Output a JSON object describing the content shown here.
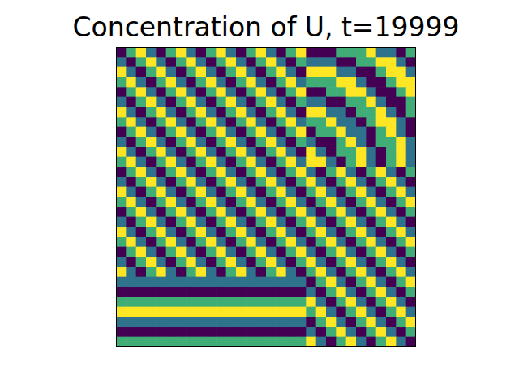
{
  "chart_data": {
    "type": "heatmap",
    "title": "Concentration of U, t=19999",
    "xlim": [
      0,
      30
    ],
    "ylim": [
      0,
      30
    ],
    "tick_labels": false,
    "cells": [
      [
        0.1,
        0.6,
        0.9,
        0.4,
        0.1,
        0.6,
        0.9,
        0.4,
        0.1,
        0.6,
        0.9,
        0.4,
        0.1,
        0.6,
        0.9,
        0.4,
        0.1,
        0.6,
        0.9,
        0.1,
        0.1,
        0.1,
        0.6,
        0.6,
        0.6,
        0.9,
        0.4,
        0.4,
        0.1,
        0.6
      ],
      [
        0.4,
        0.1,
        0.6,
        0.9,
        0.4,
        0.1,
        0.6,
        0.9,
        0.4,
        0.1,
        0.6,
        0.9,
        0.4,
        0.1,
        0.6,
        0.9,
        0.4,
        0.1,
        0.6,
        0.4,
        0.4,
        0.4,
        0.1,
        0.1,
        0.6,
        0.6,
        0.9,
        0.9,
        0.4,
        0.1
      ],
      [
        0.9,
        0.4,
        0.1,
        0.6,
        0.9,
        0.4,
        0.1,
        0.6,
        0.9,
        0.4,
        0.1,
        0.6,
        0.9,
        0.4,
        0.1,
        0.6,
        0.9,
        0.4,
        0.1,
        0.9,
        0.9,
        0.9,
        0.4,
        0.4,
        0.1,
        0.1,
        0.6,
        0.9,
        0.9,
        0.4
      ],
      [
        0.6,
        0.9,
        0.4,
        0.1,
        0.6,
        0.9,
        0.4,
        0.1,
        0.6,
        0.9,
        0.4,
        0.1,
        0.6,
        0.9,
        0.4,
        0.1,
        0.6,
        0.9,
        0.4,
        0.6,
        0.6,
        0.6,
        0.9,
        0.9,
        0.4,
        0.1,
        0.1,
        0.6,
        0.9,
        0.9
      ],
      [
        0.1,
        0.6,
        0.9,
        0.4,
        0.1,
        0.6,
        0.9,
        0.4,
        0.1,
        0.6,
        0.9,
        0.4,
        0.1,
        0.6,
        0.9,
        0.4,
        0.1,
        0.6,
        0.9,
        0.1,
        0.1,
        0.6,
        0.6,
        0.9,
        0.9,
        0.4,
        0.1,
        0.1,
        0.6,
        0.9
      ],
      [
        0.4,
        0.1,
        0.6,
        0.9,
        0.4,
        0.1,
        0.6,
        0.9,
        0.4,
        0.1,
        0.6,
        0.9,
        0.4,
        0.1,
        0.6,
        0.9,
        0.4,
        0.1,
        0.6,
        0.4,
        0.4,
        0.1,
        0.1,
        0.6,
        0.6,
        0.9,
        0.4,
        0.1,
        0.1,
        0.6
      ],
      [
        0.9,
        0.4,
        0.1,
        0.6,
        0.9,
        0.4,
        0.1,
        0.6,
        0.9,
        0.4,
        0.1,
        0.6,
        0.9,
        0.4,
        0.1,
        0.6,
        0.9,
        0.4,
        0.1,
        0.9,
        0.9,
        0.4,
        0.4,
        0.1,
        0.6,
        0.6,
        0.9,
        0.4,
        0.1,
        0.6
      ],
      [
        0.6,
        0.9,
        0.4,
        0.1,
        0.6,
        0.9,
        0.4,
        0.1,
        0.6,
        0.9,
        0.4,
        0.1,
        0.6,
        0.9,
        0.4,
        0.1,
        0.6,
        0.9,
        0.4,
        0.6,
        0.6,
        0.9,
        0.4,
        0.4,
        0.1,
        0.6,
        0.9,
        0.9,
        0.4,
        0.1
      ],
      [
        0.1,
        0.6,
        0.9,
        0.4,
        0.1,
        0.6,
        0.9,
        0.4,
        0.1,
        0.6,
        0.9,
        0.4,
        0.1,
        0.6,
        0.9,
        0.4,
        0.1,
        0.6,
        0.9,
        0.1,
        0.6,
        0.6,
        0.9,
        0.4,
        0.4,
        0.1,
        0.6,
        0.9,
        0.4,
        0.1
      ],
      [
        0.4,
        0.1,
        0.6,
        0.9,
        0.4,
        0.1,
        0.6,
        0.9,
        0.4,
        0.1,
        0.6,
        0.9,
        0.4,
        0.1,
        0.6,
        0.9,
        0.4,
        0.1,
        0.6,
        0.4,
        0.1,
        0.1,
        0.6,
        0.9,
        0.4,
        0.1,
        0.6,
        0.6,
        0.9,
        0.4
      ],
      [
        0.9,
        0.4,
        0.1,
        0.6,
        0.9,
        0.4,
        0.1,
        0.6,
        0.9,
        0.4,
        0.1,
        0.6,
        0.9,
        0.4,
        0.1,
        0.6,
        0.9,
        0.4,
        0.1,
        0.9,
        0.4,
        0.1,
        0.6,
        0.6,
        0.9,
        0.4,
        0.1,
        0.6,
        0.9,
        0.4
      ],
      [
        0.6,
        0.9,
        0.4,
        0.1,
        0.6,
        0.9,
        0.4,
        0.1,
        0.6,
        0.9,
        0.4,
        0.1,
        0.6,
        0.9,
        0.4,
        0.1,
        0.6,
        0.9,
        0.4,
        0.9,
        0.9,
        0.4,
        0.1,
        0.6,
        0.9,
        0.4,
        0.1,
        0.6,
        0.9,
        0.4
      ],
      [
        0.1,
        0.6,
        0.9,
        0.4,
        0.1,
        0.6,
        0.9,
        0.4,
        0.1,
        0.6,
        0.9,
        0.4,
        0.1,
        0.6,
        0.9,
        0.4,
        0.1,
        0.6,
        0.9,
        0.4,
        0.1,
        0.6,
        0.9,
        0.4,
        0.1,
        0.6,
        0.9,
        0.4,
        0.1,
        0.6
      ],
      [
        0.4,
        0.1,
        0.6,
        0.9,
        0.4,
        0.1,
        0.6,
        0.9,
        0.4,
        0.1,
        0.6,
        0.9,
        0.4,
        0.1,
        0.6,
        0.9,
        0.4,
        0.1,
        0.6,
        0.9,
        0.4,
        0.1,
        0.6,
        0.9,
        0.4,
        0.1,
        0.6,
        0.9,
        0.4,
        0.1
      ],
      [
        0.9,
        0.4,
        0.1,
        0.6,
        0.9,
        0.4,
        0.1,
        0.6,
        0.9,
        0.4,
        0.1,
        0.6,
        0.9,
        0.4,
        0.1,
        0.6,
        0.9,
        0.4,
        0.1,
        0.6,
        0.9,
        0.4,
        0.1,
        0.6,
        0.9,
        0.4,
        0.1,
        0.6,
        0.9,
        0.4
      ],
      [
        0.6,
        0.9,
        0.4,
        0.1,
        0.6,
        0.9,
        0.4,
        0.1,
        0.6,
        0.9,
        0.4,
        0.1,
        0.6,
        0.9,
        0.4,
        0.1,
        0.6,
        0.9,
        0.4,
        0.1,
        0.6,
        0.9,
        0.4,
        0.1,
        0.6,
        0.9,
        0.4,
        0.1,
        0.6,
        0.9
      ],
      [
        0.1,
        0.6,
        0.9,
        0.4,
        0.1,
        0.6,
        0.9,
        0.4,
        0.1,
        0.6,
        0.9,
        0.4,
        0.1,
        0.6,
        0.9,
        0.4,
        0.1,
        0.6,
        0.9,
        0.4,
        0.1,
        0.6,
        0.9,
        0.4,
        0.1,
        0.6,
        0.9,
        0.4,
        0.1,
        0.6
      ],
      [
        0.4,
        0.1,
        0.6,
        0.9,
        0.4,
        0.1,
        0.6,
        0.9,
        0.4,
        0.1,
        0.6,
        0.9,
        0.4,
        0.1,
        0.6,
        0.9,
        0.4,
        0.1,
        0.6,
        0.9,
        0.4,
        0.1,
        0.6,
        0.9,
        0.4,
        0.1,
        0.6,
        0.9,
        0.4,
        0.1
      ],
      [
        0.9,
        0.4,
        0.1,
        0.6,
        0.9,
        0.4,
        0.1,
        0.6,
        0.9,
        0.4,
        0.1,
        0.6,
        0.9,
        0.4,
        0.1,
        0.6,
        0.9,
        0.4,
        0.1,
        0.6,
        0.9,
        0.4,
        0.1,
        0.6,
        0.9,
        0.4,
        0.1,
        0.6,
        0.9,
        0.4
      ],
      [
        0.6,
        0.9,
        0.4,
        0.1,
        0.6,
        0.9,
        0.4,
        0.1,
        0.6,
        0.9,
        0.4,
        0.1,
        0.6,
        0.9,
        0.4,
        0.1,
        0.6,
        0.9,
        0.4,
        0.1,
        0.6,
        0.9,
        0.4,
        0.1,
        0.6,
        0.9,
        0.4,
        0.1,
        0.6,
        0.9
      ],
      [
        0.1,
        0.6,
        0.9,
        0.4,
        0.1,
        0.6,
        0.9,
        0.4,
        0.1,
        0.6,
        0.9,
        0.4,
        0.1,
        0.6,
        0.9,
        0.4,
        0.1,
        0.6,
        0.9,
        0.4,
        0.1,
        0.6,
        0.9,
        0.4,
        0.1,
        0.6,
        0.9,
        0.4,
        0.1,
        0.6
      ],
      [
        0.4,
        0.1,
        0.6,
        0.9,
        0.4,
        0.1,
        0.6,
        0.9,
        0.4,
        0.1,
        0.6,
        0.9,
        0.4,
        0.1,
        0.6,
        0.9,
        0.4,
        0.1,
        0.6,
        0.9,
        0.4,
        0.1,
        0.6,
        0.9,
        0.4,
        0.1,
        0.6,
        0.9,
        0.4,
        0.1
      ],
      [
        0.9,
        0.4,
        0.1,
        0.6,
        0.9,
        0.4,
        0.1,
        0.6,
        0.9,
        0.4,
        0.1,
        0.6,
        0.9,
        0.4,
        0.1,
        0.6,
        0.9,
        0.4,
        0.1,
        0.6,
        0.9,
        0.4,
        0.1,
        0.6,
        0.9,
        0.4,
        0.1,
        0.6,
        0.9,
        0.4
      ],
      [
        0.4,
        0.4,
        0.4,
        0.4,
        0.4,
        0.4,
        0.4,
        0.4,
        0.4,
        0.4,
        0.4,
        0.4,
        0.4,
        0.4,
        0.4,
        0.4,
        0.4,
        0.4,
        0.4,
        0.1,
        0.6,
        0.9,
        0.4,
        0.1,
        0.6,
        0.9,
        0.4,
        0.1,
        0.6,
        0.9
      ],
      [
        0.1,
        0.1,
        0.1,
        0.1,
        0.1,
        0.1,
        0.1,
        0.1,
        0.1,
        0.1,
        0.1,
        0.1,
        0.1,
        0.1,
        0.1,
        0.1,
        0.1,
        0.1,
        0.1,
        0.4,
        0.1,
        0.6,
        0.9,
        0.4,
        0.1,
        0.6,
        0.9,
        0.4,
        0.1,
        0.6
      ],
      [
        0.6,
        0.6,
        0.6,
        0.6,
        0.6,
        0.6,
        0.6,
        0.6,
        0.6,
        0.6,
        0.6,
        0.6,
        0.6,
        0.6,
        0.6,
        0.6,
        0.6,
        0.6,
        0.6,
        0.9,
        0.4,
        0.1,
        0.6,
        0.9,
        0.4,
        0.1,
        0.6,
        0.9,
        0.4,
        0.1
      ],
      [
        0.9,
        0.9,
        0.9,
        0.9,
        0.9,
        0.9,
        0.9,
        0.9,
        0.9,
        0.9,
        0.9,
        0.9,
        0.9,
        0.9,
        0.9,
        0.9,
        0.9,
        0.9,
        0.9,
        0.6,
        0.9,
        0.4,
        0.1,
        0.6,
        0.9,
        0.4,
        0.1,
        0.6,
        0.9,
        0.4
      ],
      [
        0.4,
        0.4,
        0.4,
        0.4,
        0.4,
        0.4,
        0.4,
        0.4,
        0.4,
        0.4,
        0.4,
        0.4,
        0.4,
        0.4,
        0.4,
        0.4,
        0.4,
        0.4,
        0.4,
        0.1,
        0.6,
        0.9,
        0.4,
        0.1,
        0.6,
        0.9,
        0.4,
        0.1,
        0.6,
        0.9
      ],
      [
        0.1,
        0.1,
        0.1,
        0.1,
        0.1,
        0.1,
        0.1,
        0.1,
        0.1,
        0.1,
        0.1,
        0.1,
        0.1,
        0.1,
        0.1,
        0.1,
        0.1,
        0.1,
        0.1,
        0.4,
        0.1,
        0.6,
        0.9,
        0.4,
        0.1,
        0.6,
        0.9,
        0.4,
        0.1,
        0.6
      ],
      [
        0.6,
        0.6,
        0.6,
        0.6,
        0.6,
        0.6,
        0.6,
        0.6,
        0.6,
        0.6,
        0.6,
        0.6,
        0.6,
        0.6,
        0.6,
        0.6,
        0.6,
        0.6,
        0.6,
        0.9,
        0.4,
        0.1,
        0.6,
        0.9,
        0.4,
        0.1,
        0.6,
        0.9,
        0.4,
        0.1
      ]
    ]
  }
}
